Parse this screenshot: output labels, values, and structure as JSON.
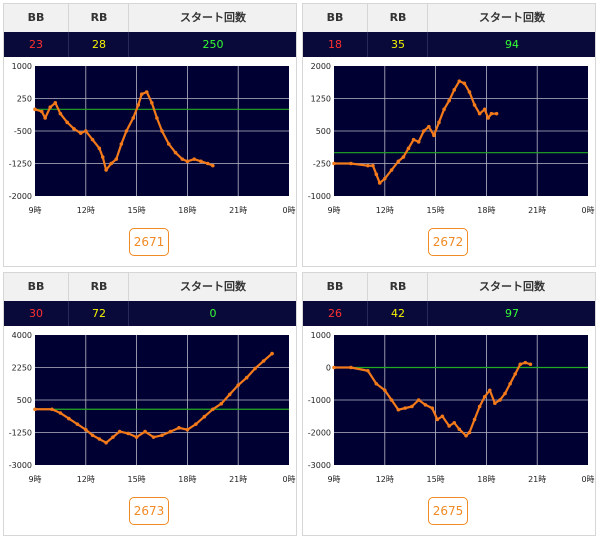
{
  "headers": {
    "bb": "BB",
    "rb": "RB",
    "starts": "スタート回数"
  },
  "colors": {
    "bb": "#ff3030",
    "rb": "#f4f400",
    "starts": "#33ff33",
    "line": "#f27a1a",
    "zero_line": "#22aa22",
    "plot_bg": "#000033"
  },
  "machines": [
    {
      "number": "2671",
      "bb": "23",
      "rb": "28",
      "starts": "250"
    },
    {
      "number": "2672",
      "bb": "18",
      "rb": "35",
      "starts": "94"
    },
    {
      "number": "2673",
      "bb": "30",
      "rb": "72",
      "starts": "0"
    },
    {
      "number": "2675",
      "bb": "26",
      "rb": "42",
      "starts": "97"
    }
  ],
  "chart_data": [
    {
      "type": "line",
      "xticks": [
        "9時",
        "12時",
        "15時",
        "18時",
        "21時",
        "0時"
      ],
      "xlim": [
        9,
        24
      ],
      "ylim": [
        -2000,
        1000
      ],
      "yticks": [
        "1000",
        "250",
        "-500",
        "-1250",
        "-2000"
      ],
      "ytick_values": [
        1000,
        250,
        -500,
        -1250,
        -2000
      ],
      "x": [
        9.0,
        9.4,
        9.6,
        9.9,
        10.2,
        10.5,
        10.9,
        11.3,
        11.7,
        12.0,
        12.4,
        12.8,
        13.0,
        13.2,
        13.5,
        13.8,
        14.1,
        14.4,
        14.8,
        15.1,
        15.3,
        15.6,
        15.9,
        16.2,
        16.5,
        16.9,
        17.3,
        17.7,
        18.0,
        18.4,
        18.8,
        19.2,
        19.5
      ],
      "y": [
        0,
        -50,
        -200,
        50,
        150,
        -100,
        -300,
        -450,
        -550,
        -500,
        -700,
        -900,
        -1100,
        -1400,
        -1250,
        -1150,
        -800,
        -500,
        -200,
        100,
        350,
        400,
        150,
        -200,
        -500,
        -800,
        -1000,
        -1150,
        -1200,
        -1150,
        -1200,
        -1250,
        -1300
      ]
    },
    {
      "type": "line",
      "xticks": [
        "9時",
        "12時",
        "15時",
        "18時",
        "21時",
        "0時"
      ],
      "xlim": [
        9,
        24
      ],
      "ylim": [
        -1000,
        2000
      ],
      "yticks": [
        "2000",
        "1250",
        "500",
        "-250",
        "-1000"
      ],
      "ytick_values": [
        2000,
        1250,
        500,
        -250,
        -1000
      ],
      "x": [
        9.0,
        10.0,
        11.0,
        11.3,
        11.5,
        11.7,
        12.0,
        12.4,
        12.8,
        13.1,
        13.4,
        13.7,
        14.0,
        14.3,
        14.6,
        14.9,
        15.2,
        15.5,
        15.8,
        16.1,
        16.4,
        16.7,
        17.0,
        17.3,
        17.6,
        17.9,
        18.1,
        18.3,
        18.6
      ],
      "y": [
        -250,
        -250,
        -300,
        -300,
        -500,
        -700,
        -600,
        -400,
        -200,
        -100,
        100,
        300,
        250,
        500,
        600,
        400,
        700,
        1000,
        1200,
        1450,
        1650,
        1600,
        1400,
        1100,
        900,
        1000,
        800,
        900,
        900
      ]
    },
    {
      "type": "line",
      "xticks": [
        "9時",
        "12時",
        "15時",
        "18時",
        "21時",
        "0時"
      ],
      "xlim": [
        9,
        24
      ],
      "ylim": [
        -3000,
        4000
      ],
      "yticks": [
        "4000",
        "2250",
        "500",
        "-1250",
        "-3000"
      ],
      "ytick_values": [
        4000,
        2250,
        500,
        -1250,
        -3000
      ],
      "x": [
        9.0,
        10.0,
        10.5,
        11.0,
        11.5,
        12.0,
        12.4,
        12.8,
        13.2,
        13.6,
        14.0,
        14.5,
        15.0,
        15.5,
        16.0,
        16.5,
        17.0,
        17.5,
        18.0,
        18.5,
        19.0,
        19.5,
        20.0,
        20.5,
        21.0,
        21.5,
        22.0,
        22.5,
        23.0
      ],
      "y": [
        0,
        0,
        -200,
        -500,
        -800,
        -1100,
        -1400,
        -1600,
        -1800,
        -1500,
        -1200,
        -1300,
        -1500,
        -1200,
        -1500,
        -1400,
        -1200,
        -1000,
        -1100,
        -800,
        -400,
        0,
        300,
        800,
        1300,
        1700,
        2200,
        2600,
        3000
      ]
    },
    {
      "type": "line",
      "xticks": [
        "9時",
        "12時",
        "15時",
        "18時",
        "21時",
        "0時"
      ],
      "xlim": [
        9,
        24
      ],
      "ylim": [
        -3000,
        1000
      ],
      "yticks": [
        "1000",
        "0",
        "-1000",
        "-2000",
        "-3000"
      ],
      "ytick_values": [
        1000,
        0,
        -1000,
        -2000,
        -3000
      ],
      "x": [
        9.0,
        10.0,
        11.0,
        11.5,
        12.0,
        12.4,
        12.8,
        13.2,
        13.6,
        14.0,
        14.4,
        14.8,
        15.1,
        15.4,
        15.8,
        16.1,
        16.4,
        16.8,
        17.0,
        17.3,
        17.6,
        17.9,
        18.2,
        18.5,
        18.8,
        19.1,
        19.4,
        19.7,
        20.0,
        20.3,
        20.6
      ],
      "y": [
        0,
        0,
        -100,
        -500,
        -700,
        -1000,
        -1300,
        -1250,
        -1200,
        -1000,
        -1150,
        -1250,
        -1600,
        -1500,
        -1800,
        -1700,
        -1900,
        -2100,
        -2000,
        -1600,
        -1200,
        -900,
        -700,
        -1100,
        -1000,
        -800,
        -500,
        -200,
        100,
        150,
        100
      ]
    }
  ]
}
